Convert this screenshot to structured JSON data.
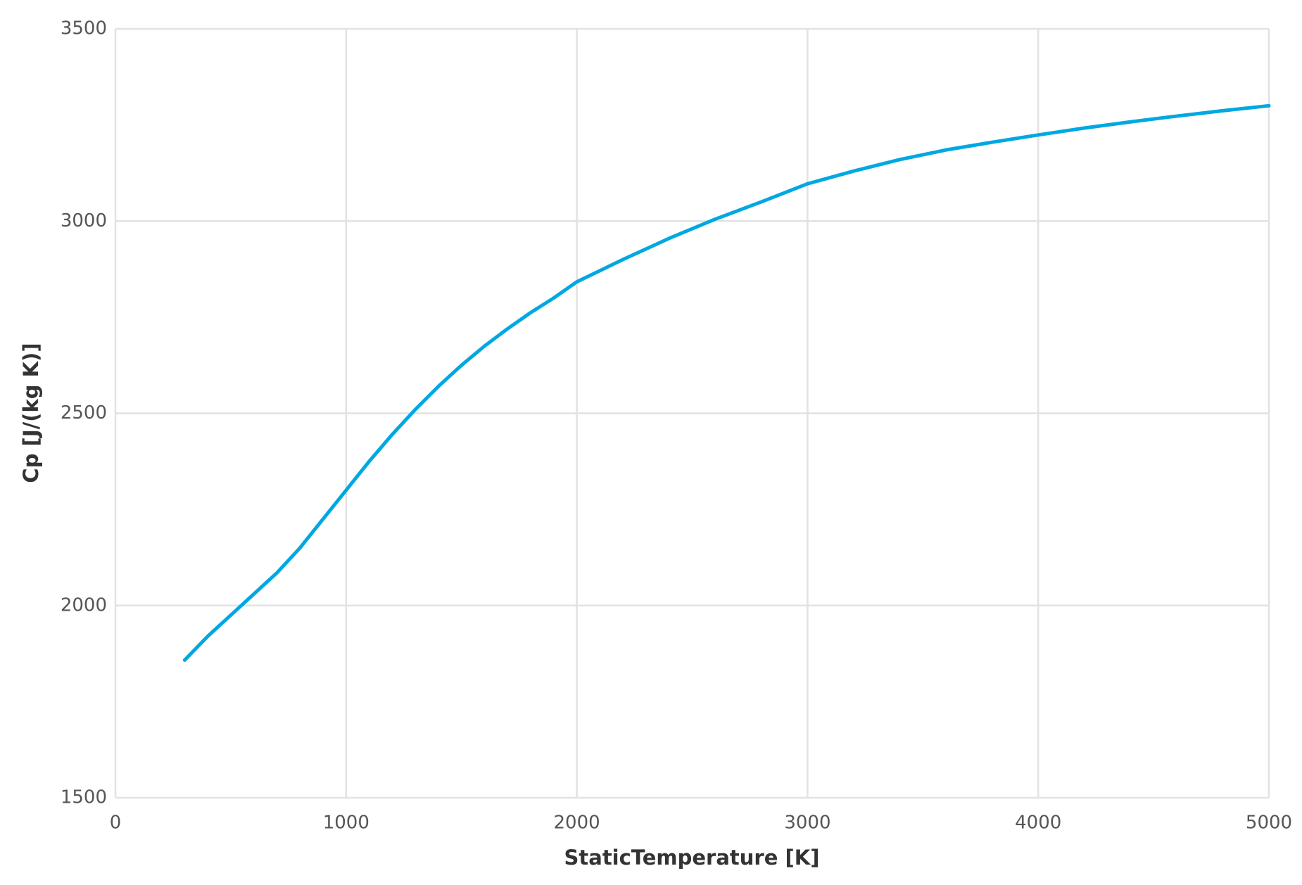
{
  "chart_data": {
    "type": "line",
    "x_label": "StaticTemperature [K]",
    "y_label": "Cp [J/(kg K)]",
    "x": [
      300,
      400,
      500,
      600,
      700,
      800,
      900,
      1000,
      1100,
      1200,
      1300,
      1400,
      1500,
      1600,
      1700,
      1800,
      1900,
      2000,
      2200,
      2400,
      2600,
      2800,
      3000,
      3200,
      3400,
      3600,
      3800,
      4000,
      4200,
      4400,
      4600,
      4800,
      5000
    ],
    "series": [
      {
        "name": "Cp",
        "color": "#00a8e1",
        "values": [
          1858,
          1920,
          1975,
          2030,
          2085,
          2150,
          2225,
          2300,
          2375,
          2445,
          2510,
          2570,
          2625,
          2675,
          2720,
          2762,
          2800,
          2842,
          2900,
          2955,
          3005,
          3050,
          3097,
          3130,
          3160,
          3185,
          3205,
          3224,
          3242,
          3258,
          3273,
          3287,
          3300
        ]
      }
    ],
    "xlim": [
      0,
      5000
    ],
    "xticks": [
      0,
      1000,
      2000,
      3000,
      4000,
      5000
    ],
    "ylim": [
      1500,
      3500
    ],
    "yticks": [
      1500,
      2000,
      2500,
      3000,
      3500
    ],
    "grid": true
  }
}
